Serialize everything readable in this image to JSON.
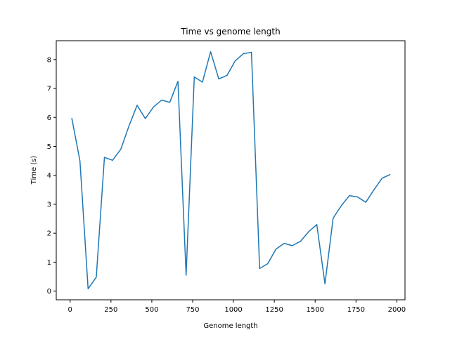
{
  "chart_data": {
    "type": "line",
    "title": "Time vs genome length",
    "xlabel": "Genome length",
    "ylabel": "Time (s)",
    "xlim": [
      -85,
      2050
    ],
    "ylim": [
      -0.3,
      8.65
    ],
    "xticks": [
      0,
      250,
      500,
      750,
      1000,
      1250,
      1500,
      1750,
      2000
    ],
    "yticks": [
      0,
      1,
      2,
      3,
      4,
      5,
      6,
      7,
      8
    ],
    "grid": false,
    "series": [
      {
        "color": "#1f77b4",
        "x": [
          10,
          60,
          110,
          160,
          210,
          260,
          310,
          360,
          410,
          460,
          510,
          560,
          610,
          660,
          710,
          760,
          810,
          860,
          910,
          960,
          1010,
          1060,
          1110,
          1160,
          1210,
          1260,
          1310,
          1360,
          1410,
          1460,
          1510,
          1560,
          1610,
          1660,
          1710,
          1760,
          1810,
          1860,
          1910,
          1960
        ],
        "y": [
          5.98,
          4.5,
          0.08,
          0.48,
          4.62,
          4.52,
          4.9,
          5.7,
          6.42,
          5.96,
          6.36,
          6.6,
          6.52,
          7.25,
          0.55,
          7.4,
          7.22,
          8.27,
          7.33,
          7.45,
          7.95,
          8.2,
          8.25,
          0.78,
          0.95,
          1.45,
          1.65,
          1.57,
          1.72,
          2.05,
          2.3,
          0.25,
          2.52,
          2.95,
          3.3,
          3.25,
          3.07,
          3.5,
          3.9,
          4.03
        ]
      }
    ]
  }
}
